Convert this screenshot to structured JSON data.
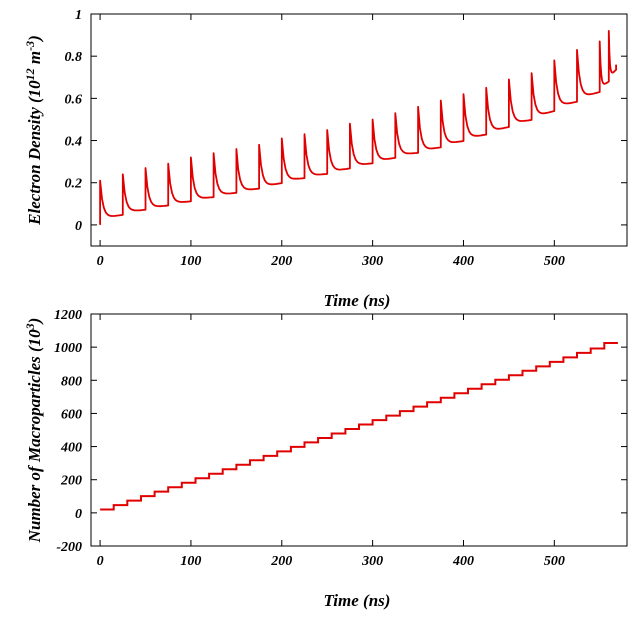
{
  "chart_data": [
    {
      "type": "line",
      "xlabel": "Time (ns)",
      "ylabel_main": "Electron Density (10",
      "ylabel_exp1": "12",
      "ylabel_mid": " m",
      "ylabel_exp2": "-3",
      "ylabel_end": ")",
      "xlim": [
        -10,
        580
      ],
      "ylim": [
        -0.1,
        1.0
      ],
      "xticks": [
        0,
        100,
        200,
        300,
        400,
        500
      ],
      "xtick_labels": [
        "0",
        "100",
        "200",
        "300",
        "400",
        "500"
      ],
      "yticks": [
        0,
        0.2,
        0.4,
        0.6,
        0.8,
        1
      ],
      "ytick_labels": [
        "0",
        "0.2",
        "0.4",
        "0.6",
        "0.8",
        "1"
      ],
      "grid": false,
      "series_color": "#e00000",
      "bunch_spacing_ns": 25,
      "x": [
        0,
        25,
        50,
        75,
        100,
        125,
        150,
        175,
        200,
        225,
        250,
        275,
        300,
        325,
        350,
        375,
        400,
        425,
        450,
        475,
        500,
        525,
        550,
        560
      ],
      "peak_values": [
        0.21,
        0.24,
        0.27,
        0.29,
        0.32,
        0.34,
        0.36,
        0.38,
        0.41,
        0.43,
        0.45,
        0.48,
        0.5,
        0.53,
        0.56,
        0.59,
        0.62,
        0.65,
        0.69,
        0.72,
        0.78,
        0.83,
        0.87,
        0.92
      ],
      "base_values": [
        0.03,
        0.06,
        0.08,
        0.1,
        0.12,
        0.14,
        0.16,
        0.18,
        0.21,
        0.23,
        0.25,
        0.28,
        0.3,
        0.33,
        0.35,
        0.38,
        0.41,
        0.44,
        0.48,
        0.51,
        0.56,
        0.6,
        0.65,
        0.7
      ],
      "end_value": 0.76
    },
    {
      "type": "line",
      "xlabel": "Time (ns)",
      "ylabel_main": "Number of Macroparticles (10",
      "ylabel_exp1": "3",
      "ylabel_end": ")",
      "xlim": [
        -10,
        580
      ],
      "ylim": [
        -200,
        1200
      ],
      "xticks": [
        0,
        100,
        200,
        300,
        400,
        500
      ],
      "xtick_labels": [
        "0",
        "100",
        "200",
        "300",
        "400",
        "500"
      ],
      "yticks": [
        -200,
        0,
        200,
        400,
        600,
        800,
        1000,
        1200
      ],
      "ytick_labels": [
        "-200",
        "0",
        "200",
        "400",
        "600",
        "800",
        "1000",
        "1200"
      ],
      "grid": false,
      "series_color": "#e00000",
      "step_x": [
        0,
        15,
        30,
        45,
        60,
        75,
        90,
        105,
        120,
        135,
        150,
        165,
        180,
        195,
        210,
        225,
        240,
        255,
        270,
        285,
        300,
        315,
        330,
        345,
        360,
        375,
        390,
        405,
        420,
        435,
        450,
        465,
        480,
        495,
        510,
        525,
        540,
        555,
        570
      ],
      "step_y": [
        20,
        47,
        74,
        101,
        128,
        155,
        182,
        209,
        236,
        263,
        290,
        317,
        344,
        371,
        398,
        425,
        452,
        479,
        506,
        533,
        560,
        587,
        614,
        641,
        668,
        695,
        722,
        749,
        776,
        803,
        830,
        857,
        884,
        911,
        938,
        965,
        992,
        1025,
        1025
      ]
    }
  ]
}
